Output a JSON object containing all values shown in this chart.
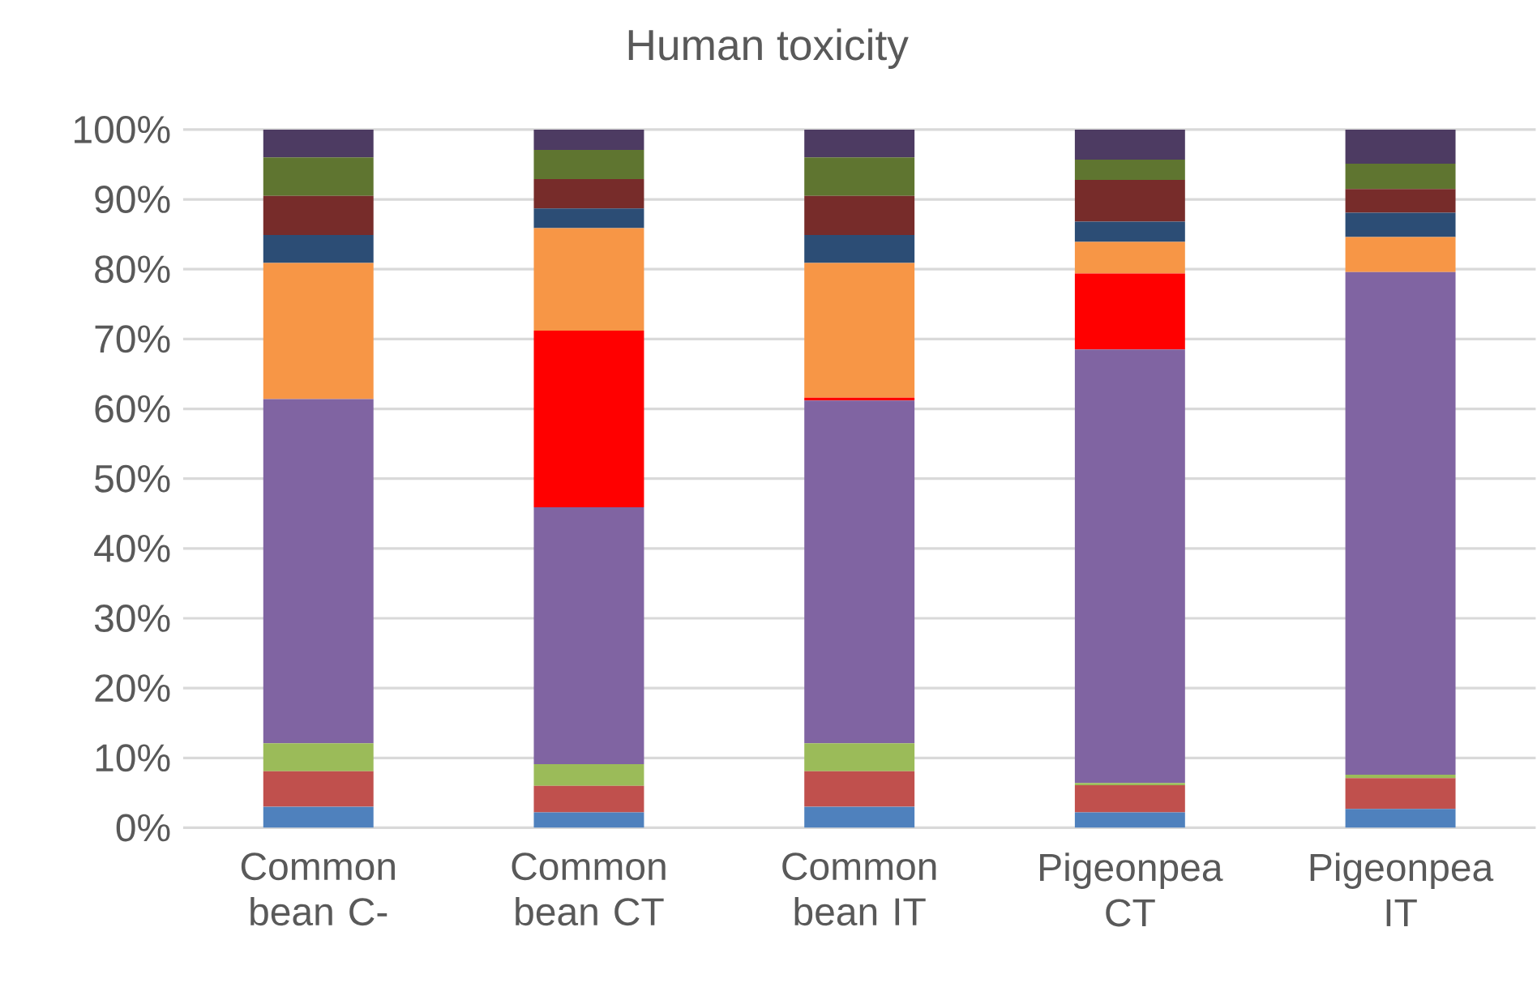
{
  "chart_data": {
    "type": "bar",
    "title": "Human toxicity",
    "stacked": true,
    "grid": "y",
    "categories": [
      "Common bean C-",
      "Common bean CT",
      "Common bean IT",
      "Pigeonpea CT",
      "Pigeonpea IT"
    ],
    "ylim": [
      0,
      100
    ],
    "yticks": [
      {
        "value": 0,
        "label": "0%"
      },
      {
        "value": 10,
        "label": "10%"
      },
      {
        "value": 20,
        "label": "20%"
      },
      {
        "value": 30,
        "label": "30%"
      },
      {
        "value": 40,
        "label": "40%"
      },
      {
        "value": 50,
        "label": "50%"
      },
      {
        "value": 60,
        "label": "60%"
      },
      {
        "value": 70,
        "label": "70%"
      },
      {
        "value": 80,
        "label": "80%"
      },
      {
        "value": 90,
        "label": "90%"
      },
      {
        "value": 100,
        "label": "100%"
      }
    ],
    "series": [
      {
        "color": "#4f81bd",
        "values": [
          3.0,
          2.2,
          3.0,
          2.2,
          2.7
        ]
      },
      {
        "color": "#c0504d",
        "values": [
          5.1,
          3.8,
          5.1,
          3.9,
          4.4
        ]
      },
      {
        "color": "#9bbb59",
        "values": [
          4.0,
          3.1,
          4.0,
          0.3,
          0.5
        ]
      },
      {
        "color": "#8064a2",
        "values": [
          49.3,
          36.8,
          49.1,
          62.1,
          72.0
        ]
      },
      {
        "color": "#ff0000",
        "values": [
          0,
          25.3,
          0.4,
          10.9,
          0
        ]
      },
      {
        "color": "#f79646",
        "values": [
          19.5,
          14.7,
          19.3,
          4.5,
          5.0
        ]
      },
      {
        "color": "#2c4d75",
        "values": [
          4.0,
          2.8,
          4.0,
          2.9,
          3.5
        ]
      },
      {
        "color": "#772c2a",
        "values": [
          5.6,
          4.2,
          5.6,
          6.0,
          3.4
        ]
      },
      {
        "color": "#5f7530",
        "values": [
          5.5,
          4.2,
          5.5,
          2.9,
          3.6
        ]
      },
      {
        "color": "#4d3b62",
        "values": [
          4.0,
          2.9,
          4.0,
          4.3,
          4.9
        ]
      }
    ]
  }
}
